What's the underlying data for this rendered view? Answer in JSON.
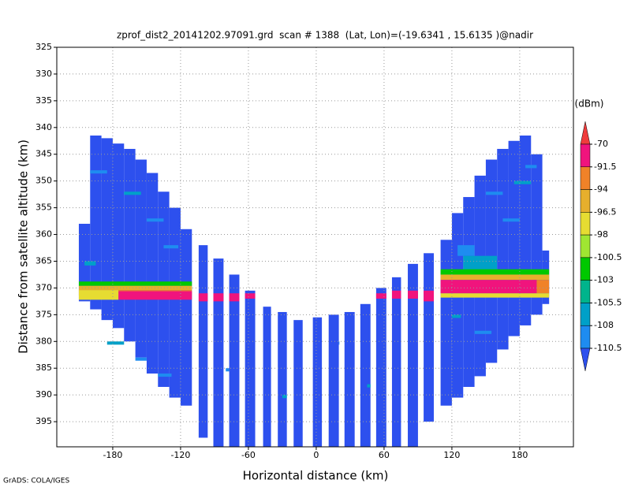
{
  "chart_data": {
    "type": "heatmap",
    "title": "zprof_dist2_20141202.97091.grd  scan # 1388  (Lat, Lon)=(-19.6341 , 15.6135 )@nadir",
    "xlabel": "Horizontal distance (km)",
    "ylabel": "Distance from satellite altitude (km)",
    "footer": "GrADS: COLA/IGES",
    "xlim": [
      -229.5,
      227.5
    ],
    "ylim": [
      325,
      399.7
    ],
    "y_inverted": true,
    "xticks": [
      -180,
      -120,
      -60,
      0,
      60,
      120,
      180
    ],
    "yticks": [
      325,
      330,
      335,
      340,
      345,
      350,
      355,
      360,
      365,
      370,
      375,
      380,
      385,
      390,
      395
    ],
    "grid": true,
    "colorbar": {
      "title": "(dBm)",
      "levels": [
        -70,
        -91.5,
        -94,
        -96.5,
        -98,
        -100.5,
        -103,
        -105.5,
        -108,
        -110.5
      ],
      "colors": [
        "#f03c3c",
        "#f0147d",
        "#f08228",
        "#e6af2d",
        "#e6dc32",
        "#a0e632",
        "#00c800",
        "#00b48c",
        "#00a0c8",
        "#1e8cf0",
        "#2d50ee"
      ]
    },
    "cells": {
      "x0": [
        -210,
        -200,
        -190,
        -180,
        -170,
        -160,
        -150,
        -140,
        -130,
        -120,
        -104,
        -91,
        -77,
        -63,
        -47,
        -34,
        -20,
        -3,
        11,
        25,
        39,
        53,
        67,
        81,
        95,
        110,
        120,
        130,
        140,
        150,
        160,
        170,
        180,
        190,
        200,
        -200,
        -170,
        -150,
        -135,
        -185,
        -160,
        -140,
        -205,
        -80,
        -30,
        20,
        45,
        150,
        175,
        165,
        120,
        185,
        140,
        -210,
        -210,
        -210,
        -175,
        -210,
        -104,
        -91,
        -77,
        -63,
        53,
        67,
        81,
        95,
        125,
        130,
        110,
        110,
        110,
        195,
        110
      ],
      "x1": [
        -200,
        -190,
        -180,
        -170,
        -160,
        -150,
        -140,
        -130,
        -120,
        -110,
        -96,
        -82,
        -68,
        -54,
        -40,
        -26,
        -12,
        5,
        20,
        34,
        48,
        62,
        75,
        90,
        104,
        120,
        130,
        140,
        150,
        160,
        170,
        180,
        190,
        200,
        206,
        -185,
        -155,
        -135,
        -122,
        -170,
        -150,
        -128,
        -195,
        -77,
        -26,
        20.5,
        48,
        165,
        190,
        180,
        128,
        195,
        155,
        -110,
        -110,
        -110,
        -110,
        -175,
        -96,
        -82,
        -68,
        -54,
        62,
        75,
        90,
        104,
        140,
        160,
        206,
        206,
        195,
        206,
        206
      ],
      "y0": [
        358,
        341.5,
        342,
        343,
        344,
        346,
        348.5,
        352,
        355,
        359,
        362,
        364.5,
        367.5,
        370.5,
        373.5,
        374.5,
        376,
        375.5,
        375,
        374.5,
        373,
        370,
        368,
        365.5,
        363.5,
        361,
        356,
        353,
        349,
        346,
        344,
        342.5,
        341.5,
        345,
        363,
        348,
        352,
        357,
        362,
        380,
        383,
        386,
        365,
        385,
        390,
        380,
        388,
        352,
        350,
        357,
        375,
        347,
        378,
        368.8,
        369.6,
        370.4,
        370.6,
        370.4,
        371,
        371,
        371,
        371,
        371,
        370.5,
        370.5,
        370.5,
        362,
        364,
        366.5,
        367.5,
        368.5,
        368.5,
        371
      ],
      "y0_note_free": null,
      "y1": [
        372.5,
        374,
        376,
        377.5,
        380,
        383,
        386,
        388.5,
        390.5,
        392,
        398,
        399.7,
        399.7,
        399.7,
        399.7,
        399.7,
        399.7,
        399.7,
        399.7,
        399.7,
        399.7,
        399.7,
        399.7,
        399.7,
        395,
        392,
        390.5,
        388.5,
        386.5,
        384,
        381.5,
        379,
        377,
        375,
        373,
        348.6,
        352.6,
        357.6,
        362.6,
        380.6,
        383.6,
        386.6,
        365.8,
        385.6,
        390.6,
        380.6,
        388.6,
        352.6,
        350.6,
        357.6,
        375.6,
        347.6,
        378.6,
        369.6,
        370.4,
        371.4,
        372.2,
        372.2,
        372.5,
        372.5,
        372.5,
        372,
        372,
        372,
        372,
        372.5,
        364,
        367.5,
        367.5,
        368.5,
        371,
        371,
        371.8
      ],
      "values": [
        -115,
        -115,
        -115,
        -115,
        -115,
        -115,
        -115,
        -115,
        -115,
        -115,
        -115,
        -115,
        -115,
        -115,
        -115,
        -115,
        -115,
        -115,
        -115,
        -115,
        -115,
        -115,
        -115,
        -115,
        -115,
        -115,
        -115,
        -115,
        -115,
        -115,
        -115,
        -115,
        -115,
        -115,
        -115,
        -109,
        -107,
        -109,
        -109,
        -107,
        -109,
        -109,
        -107,
        -109,
        -107,
        -109,
        -107,
        -109,
        -107,
        -109,
        -107,
        -109,
        -109,
        -102,
        -95,
        -93,
        -80,
        -97,
        -80,
        -80,
        -80,
        -80,
        -80,
        -80,
        -80,
        -80,
        -109,
        -107,
        -102,
        -95,
        -80,
        -93,
        -97
      ]
    }
  }
}
